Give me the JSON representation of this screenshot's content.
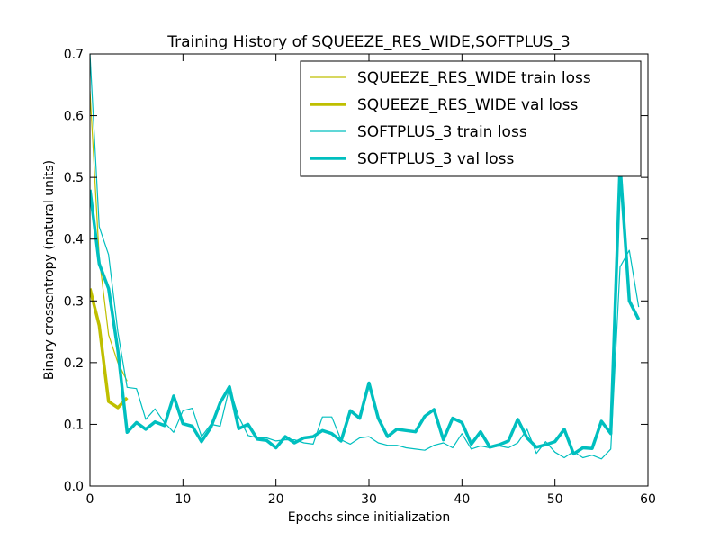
{
  "chart_data": {
    "type": "line",
    "title": "Training History of SQUEEZE_RES_WIDE,SOFTPLUS_3",
    "xlabel": "Epochs since initialization",
    "ylabel": "Binary crossentropy (natural units)",
    "xlim": [
      0,
      60
    ],
    "ylim": [
      0.0,
      0.7
    ],
    "xticks": [
      0,
      10,
      20,
      30,
      40,
      50,
      60
    ],
    "yticks": [
      0.0,
      0.1,
      0.2,
      0.3,
      0.4,
      0.5,
      0.6,
      0.7
    ],
    "xtick_labels": [
      "0",
      "10",
      "20",
      "30",
      "40",
      "50",
      "60"
    ],
    "ytick_labels": [
      "0.0",
      "0.1",
      "0.2",
      "0.3",
      "0.4",
      "0.5",
      "0.6",
      "0.7"
    ],
    "grid": false,
    "legend_position": "top-right",
    "series": [
      {
        "name": "SQUEEZE_RES_WIDE train loss",
        "color": "#bfbf00",
        "style": "thin",
        "x": [
          0,
          1,
          2,
          3,
          4
        ],
        "y": [
          0.64,
          0.37,
          0.245,
          0.2,
          0.17
        ]
      },
      {
        "name": "SQUEEZE_RES_WIDE val loss",
        "color": "#bfbf00",
        "style": "thick",
        "x": [
          0,
          1,
          2,
          3,
          4
        ],
        "y": [
          0.32,
          0.26,
          0.137,
          0.127,
          0.143
        ]
      },
      {
        "name": "SOFTPLUS_3 train loss",
        "color": "#00bfbf",
        "style": "thin",
        "x": [
          0,
          1,
          2,
          3,
          4,
          5,
          6,
          7,
          8,
          9,
          10,
          11,
          12,
          13,
          14,
          15,
          16,
          17,
          18,
          19,
          20,
          21,
          22,
          23,
          24,
          25,
          26,
          27,
          28,
          29,
          30,
          31,
          32,
          33,
          34,
          35,
          36,
          37,
          38,
          39,
          40,
          41,
          42,
          43,
          44,
          45,
          46,
          47,
          48,
          49,
          50,
          51,
          52,
          53,
          54,
          55,
          56,
          57,
          58,
          59
        ],
        "y": [
          0.7,
          0.42,
          0.375,
          0.25,
          0.16,
          0.158,
          0.108,
          0.125,
          0.103,
          0.087,
          0.122,
          0.126,
          0.08,
          0.1,
          0.097,
          0.16,
          0.112,
          0.082,
          0.078,
          0.078,
          0.073,
          0.075,
          0.075,
          0.07,
          0.068,
          0.112,
          0.112,
          0.075,
          0.068,
          0.078,
          0.08,
          0.07,
          0.066,
          0.066,
          0.062,
          0.06,
          0.058,
          0.066,
          0.07,
          0.062,
          0.085,
          0.06,
          0.065,
          0.062,
          0.065,
          0.062,
          0.07,
          0.092,
          0.053,
          0.072,
          0.055,
          0.046,
          0.056,
          0.046,
          0.05,
          0.044,
          0.06,
          0.355,
          0.382,
          0.29
        ]
      },
      {
        "name": "SOFTPLUS_3 val loss",
        "color": "#00bfbf",
        "style": "thick",
        "x": [
          0,
          1,
          2,
          3,
          4,
          5,
          6,
          7,
          8,
          9,
          10,
          11,
          12,
          13,
          14,
          15,
          16,
          17,
          18,
          19,
          20,
          21,
          22,
          23,
          24,
          25,
          26,
          27,
          28,
          29,
          30,
          31,
          32,
          33,
          34,
          35,
          36,
          37,
          38,
          39,
          40,
          41,
          42,
          43,
          44,
          45,
          46,
          47,
          48,
          49,
          50,
          51,
          52,
          53,
          54,
          55,
          56,
          57,
          58,
          59
        ],
        "y": [
          0.48,
          0.36,
          0.32,
          0.22,
          0.087,
          0.103,
          0.092,
          0.104,
          0.098,
          0.146,
          0.101,
          0.097,
          0.072,
          0.095,
          0.135,
          0.161,
          0.093,
          0.1,
          0.076,
          0.074,
          0.062,
          0.08,
          0.07,
          0.078,
          0.08,
          0.09,
          0.085,
          0.073,
          0.122,
          0.11,
          0.167,
          0.11,
          0.08,
          0.092,
          0.09,
          0.088,
          0.113,
          0.124,
          0.075,
          0.11,
          0.103,
          0.068,
          0.088,
          0.063,
          0.067,
          0.073,
          0.108,
          0.078,
          0.063,
          0.067,
          0.072,
          0.092,
          0.052,
          0.062,
          0.061,
          0.105,
          0.085,
          0.52,
          0.3,
          0.27
        ]
      }
    ]
  }
}
